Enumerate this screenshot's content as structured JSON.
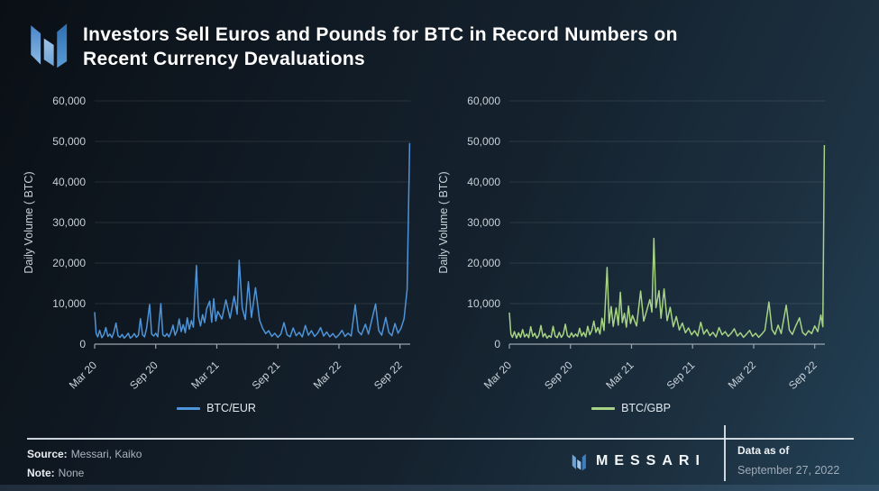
{
  "header": {
    "title": "Investors Sell Euros and Pounds for BTC in Record Numbers on\nRecent Currency Devaluations"
  },
  "footer": {
    "source_label": "Source:",
    "source_value": "Messari, Kaiko",
    "note_label": "Note:",
    "note_value": "None",
    "brand": "MESSARI",
    "data_as_of_label": "Data as of",
    "data_as_of_value": "September 27, 2022"
  },
  "colors": {
    "btc_eur_line": "#4f94d8",
    "btc_gbp_line": "#a6d384",
    "grid": "rgba(255,255,255,0.10)",
    "axis": "#9aa5ae",
    "tick_text": "#c9d1d8"
  },
  "chart_data": [
    {
      "type": "line",
      "title": "",
      "xlabel": "",
      "ylabel": "Daily Volume ( BTC)",
      "ylim": [
        0,
        60000
      ],
      "grid": true,
      "legend_position": "bottom",
      "yticks": [
        {
          "v": 0,
          "label": "0"
        },
        {
          "v": 10000,
          "label": "10,000"
        },
        {
          "v": 20000,
          "label": "20,000"
        },
        {
          "v": 30000,
          "label": "30,000"
        },
        {
          "v": 40000,
          "label": "40,000"
        },
        {
          "v": 50000,
          "label": "50,000"
        },
        {
          "v": 60000,
          "label": "60,000"
        }
      ],
      "xmax_months": 31,
      "xticks": [
        {
          "m": 0,
          "label": "Mar 20"
        },
        {
          "m": 6,
          "label": "Sep 20"
        },
        {
          "m": 12,
          "label": "Mar 21"
        },
        {
          "m": 18,
          "label": "Sep 21"
        },
        {
          "m": 24,
          "label": "Mar 22"
        },
        {
          "m": 30,
          "label": "Sep 22"
        }
      ],
      "series": [
        {
          "name": "BTC/EUR",
          "color": "#4f94d8",
          "points": [
            [
              0,
              7900
            ],
            [
              0.15,
              2600
            ],
            [
              0.3,
              1800
            ],
            [
              0.5,
              3400
            ],
            [
              0.7,
              1600
            ],
            [
              0.9,
              2300
            ],
            [
              1.1,
              4100
            ],
            [
              1.3,
              1900
            ],
            [
              1.5,
              2500
            ],
            [
              1.7,
              1600
            ],
            [
              1.9,
              3100
            ],
            [
              2.1,
              5200
            ],
            [
              2.3,
              2000
            ],
            [
              2.5,
              1700
            ],
            [
              2.7,
              2400
            ],
            [
              2.9,
              1500
            ],
            [
              3.1,
              2000
            ],
            [
              3.3,
              2700
            ],
            [
              3.5,
              1500
            ],
            [
              3.7,
              1900
            ],
            [
              3.9,
              2600
            ],
            [
              4.1,
              1700
            ],
            [
              4.3,
              2200
            ],
            [
              4.5,
              6300
            ],
            [
              4.7,
              2300
            ],
            [
              4.9,
              1800
            ],
            [
              5.1,
              3900
            ],
            [
              5.4,
              9800
            ],
            [
              5.6,
              2500
            ],
            [
              5.8,
              2000
            ],
            [
              6.0,
              2700
            ],
            [
              6.2,
              1800
            ],
            [
              6.5,
              10000
            ],
            [
              6.7,
              2300
            ],
            [
              6.9,
              1900
            ],
            [
              7.1,
              2600
            ],
            [
              7.3,
              1800
            ],
            [
              7.5,
              3000
            ],
            [
              7.7,
              4700
            ],
            [
              7.9,
              2200
            ],
            [
              8.1,
              3400
            ],
            [
              8.3,
              6200
            ],
            [
              8.5,
              3100
            ],
            [
              8.7,
              4800
            ],
            [
              8.9,
              2800
            ],
            [
              9.1,
              6500
            ],
            [
              9.3,
              3700
            ],
            [
              9.5,
              5800
            ],
            [
              9.7,
              4200
            ],
            [
              10.0,
              19400
            ],
            [
              10.2,
              6800
            ],
            [
              10.4,
              4500
            ],
            [
              10.6,
              7300
            ],
            [
              10.8,
              5300
            ],
            [
              11.0,
              8700
            ],
            [
              11.3,
              10600
            ],
            [
              11.5,
              5400
            ],
            [
              11.7,
              11200
            ],
            [
              11.9,
              5700
            ],
            [
              12.1,
              8100
            ],
            [
              12.5,
              6200
            ],
            [
              12.9,
              10900
            ],
            [
              13.3,
              6400
            ],
            [
              13.7,
              11800
            ],
            [
              14.0,
              7400
            ],
            [
              14.2,
              20700
            ],
            [
              14.5,
              8900
            ],
            [
              14.8,
              6100
            ],
            [
              15.1,
              15400
            ],
            [
              15.4,
              6600
            ],
            [
              15.8,
              13900
            ],
            [
              16.2,
              5900
            ],
            [
              16.5,
              3900
            ],
            [
              16.8,
              2600
            ],
            [
              17.1,
              3300
            ],
            [
              17.4,
              1900
            ],
            [
              17.7,
              2700
            ],
            [
              18.0,
              1700
            ],
            [
              18.3,
              2500
            ],
            [
              18.6,
              5300
            ],
            [
              18.9,
              2300
            ],
            [
              19.2,
              1800
            ],
            [
              19.5,
              4000
            ],
            [
              19.8,
              2100
            ],
            [
              20.1,
              2900
            ],
            [
              20.4,
              1800
            ],
            [
              20.7,
              4600
            ],
            [
              21.0,
              2200
            ],
            [
              21.3,
              3300
            ],
            [
              21.6,
              1900
            ],
            [
              21.9,
              2700
            ],
            [
              22.2,
              4100
            ],
            [
              22.5,
              2000
            ],
            [
              22.8,
              3000
            ],
            [
              23.1,
              1800
            ],
            [
              23.4,
              2600
            ],
            [
              23.7,
              1600
            ],
            [
              24.0,
              2300
            ],
            [
              24.3,
              3400
            ],
            [
              24.6,
              1900
            ],
            [
              24.9,
              2700
            ],
            [
              25.2,
              2000
            ],
            [
              25.6,
              9700
            ],
            [
              25.9,
              3200
            ],
            [
              26.2,
              2300
            ],
            [
              26.6,
              4900
            ],
            [
              26.9,
              2500
            ],
            [
              27.6,
              9900
            ],
            [
              27.9,
              3400
            ],
            [
              28.2,
              2200
            ],
            [
              28.6,
              6600
            ],
            [
              28.9,
              2900
            ],
            [
              29.2,
              2100
            ],
            [
              29.5,
              5100
            ],
            [
              29.8,
              2700
            ],
            [
              30.1,
              3900
            ],
            [
              30.4,
              6300
            ],
            [
              30.7,
              13500
            ],
            [
              30.95,
              49600
            ]
          ]
        }
      ]
    },
    {
      "type": "line",
      "title": "",
      "xlabel": "",
      "ylabel": "Daily Volume ( BTC)",
      "ylim": [
        0,
        60000
      ],
      "grid": true,
      "legend_position": "bottom",
      "yticks": [
        {
          "v": 0,
          "label": "0"
        },
        {
          "v": 10000,
          "label": "10,000"
        },
        {
          "v": 20000,
          "label": "20,000"
        },
        {
          "v": 30000,
          "label": "30,000"
        },
        {
          "v": 40000,
          "label": "40,000"
        },
        {
          "v": 50000,
          "label": "50,000"
        },
        {
          "v": 60000,
          "label": "60,000"
        }
      ],
      "xmax_months": 31,
      "xticks": [
        {
          "m": 0,
          "label": "Mar 20"
        },
        {
          "m": 6,
          "label": "Sep 20"
        },
        {
          "m": 12,
          "label": "Mar 21"
        },
        {
          "m": 18,
          "label": "Sep 21"
        },
        {
          "m": 24,
          "label": "Mar 22"
        },
        {
          "m": 30,
          "label": "Sep 22"
        }
      ],
      "series": [
        {
          "name": "BTC/GBP",
          "color": "#a6d384",
          "points": [
            [
              0,
              7800
            ],
            [
              0.15,
              2500
            ],
            [
              0.3,
              1700
            ],
            [
              0.5,
              3100
            ],
            [
              0.7,
              1500
            ],
            [
              0.9,
              2800
            ],
            [
              1.1,
              1700
            ],
            [
              1.3,
              3600
            ],
            [
              1.5,
              1800
            ],
            [
              1.7,
              2500
            ],
            [
              1.9,
              1600
            ],
            [
              2.1,
              4300
            ],
            [
              2.3,
              1900
            ],
            [
              2.5,
              2700
            ],
            [
              2.7,
              1500
            ],
            [
              2.9,
              2200
            ],
            [
              3.1,
              4600
            ],
            [
              3.3,
              1800
            ],
            [
              3.5,
              2600
            ],
            [
              3.7,
              1500
            ],
            [
              3.9,
              2100
            ],
            [
              4.1,
              1700
            ],
            [
              4.3,
              4400
            ],
            [
              4.5,
              2000
            ],
            [
              4.7,
              1600
            ],
            [
              4.9,
              2900
            ],
            [
              5.1,
              1700
            ],
            [
              5.3,
              2400
            ],
            [
              5.5,
              4900
            ],
            [
              5.7,
              2100
            ],
            [
              5.9,
              1700
            ],
            [
              6.1,
              2800
            ],
            [
              6.3,
              1800
            ],
            [
              6.5,
              2500
            ],
            [
              6.7,
              1900
            ],
            [
              6.9,
              3900
            ],
            [
              7.1,
              2000
            ],
            [
              7.3,
              2900
            ],
            [
              7.5,
              1800
            ],
            [
              7.7,
              4400
            ],
            [
              7.9,
              2300
            ],
            [
              8.1,
              3400
            ],
            [
              8.3,
              5700
            ],
            [
              8.5,
              2900
            ],
            [
              8.7,
              4100
            ],
            [
              8.9,
              2500
            ],
            [
              9.1,
              6400
            ],
            [
              9.3,
              3400
            ],
            [
              9.6,
              18900
            ],
            [
              9.8,
              5200
            ],
            [
              10.0,
              9300
            ],
            [
              10.2,
              4400
            ],
            [
              10.5,
              8900
            ],
            [
              10.7,
              4700
            ],
            [
              10.9,
              12800
            ],
            [
              11.1,
              5300
            ],
            [
              11.3,
              7600
            ],
            [
              11.5,
              4200
            ],
            [
              11.7,
              9400
            ],
            [
              11.9,
              5100
            ],
            [
              12.1,
              7100
            ],
            [
              12.5,
              4500
            ],
            [
              12.9,
              13100
            ],
            [
              13.2,
              5700
            ],
            [
              13.5,
              8300
            ],
            [
              13.8,
              11000
            ],
            [
              14.0,
              7900
            ],
            [
              14.2,
              26100
            ],
            [
              14.4,
              9000
            ],
            [
              14.7,
              13200
            ],
            [
              14.9,
              6400
            ],
            [
              15.2,
              13600
            ],
            [
              15.5,
              5800
            ],
            [
              15.8,
              9100
            ],
            [
              16.1,
              4300
            ],
            [
              16.4,
              6800
            ],
            [
              16.7,
              3500
            ],
            [
              17.0,
              5200
            ],
            [
              17.3,
              2800
            ],
            [
              17.6,
              4000
            ],
            [
              17.9,
              2300
            ],
            [
              18.2,
              3300
            ],
            [
              18.5,
              2000
            ],
            [
              18.8,
              5400
            ],
            [
              19.1,
              2500
            ],
            [
              19.4,
              3600
            ],
            [
              19.7,
              2100
            ],
            [
              20.0,
              2900
            ],
            [
              20.3,
              1800
            ],
            [
              20.6,
              4100
            ],
            [
              20.9,
              2300
            ],
            [
              21.2,
              3100
            ],
            [
              21.5,
              1900
            ],
            [
              21.8,
              2700
            ],
            [
              22.1,
              3800
            ],
            [
              22.4,
              2000
            ],
            [
              22.7,
              2800
            ],
            [
              23.0,
              1700
            ],
            [
              23.3,
              2500
            ],
            [
              23.6,
              3400
            ],
            [
              23.9,
              1900
            ],
            [
              24.2,
              2700
            ],
            [
              24.5,
              1700
            ],
            [
              24.8,
              2500
            ],
            [
              25.1,
              3400
            ],
            [
              25.5,
              10400
            ],
            [
              25.8,
              3600
            ],
            [
              26.1,
              2400
            ],
            [
              26.4,
              4700
            ],
            [
              26.7,
              2600
            ],
            [
              27.2,
              9600
            ],
            [
              27.5,
              3500
            ],
            [
              27.8,
              2400
            ],
            [
              28.1,
              4300
            ],
            [
              28.5,
              6500
            ],
            [
              28.8,
              2900
            ],
            [
              29.1,
              2200
            ],
            [
              29.4,
              3300
            ],
            [
              29.7,
              2600
            ],
            [
              30.0,
              4500
            ],
            [
              30.3,
              3100
            ],
            [
              30.6,
              7200
            ],
            [
              30.8,
              4300
            ],
            [
              30.95,
              49100
            ]
          ]
        }
      ]
    }
  ]
}
